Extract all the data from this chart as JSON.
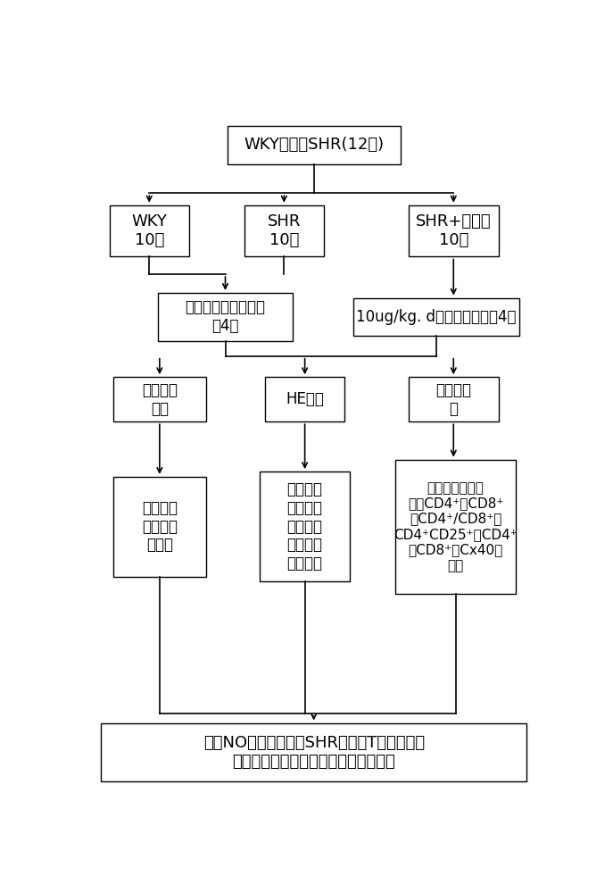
{
  "bg_color": "#ffffff",
  "box_edge_color": "#000000",
  "title": "WKY大鼠和SHR(12周)",
  "group1": "WKY\n10只",
  "group2": "SHR\n10只",
  "group3": "SHR+硝普钠\n10只",
  "treat1": "等量生理盐水腹腔注\n射4周",
  "treat2": "10ug/kg. d硝普钠腹腔注射4周",
  "method1": "每周监测\n血压",
  "method2": "HE染色",
  "method3": "流式细胞\n术",
  "result1": "观察硝普\n钠对血压\n的影响",
  "result2": "观察脑基\n底动脉内\n皮损伤、\n炎性细胞\n浸润程度",
  "result3": "检测外周血淋巴\n细胞CD4⁺、CD8⁺\n、CD4⁺/CD8⁺、\nCD4⁺CD25⁺及CD4⁺\n和CD8⁺上Cx40的\n表达",
  "conclusion": "探讨NO是否通过调节SHR外周血T淋巴细胞间\n缝隙连接的表达来保护脑基底动脉损伤"
}
